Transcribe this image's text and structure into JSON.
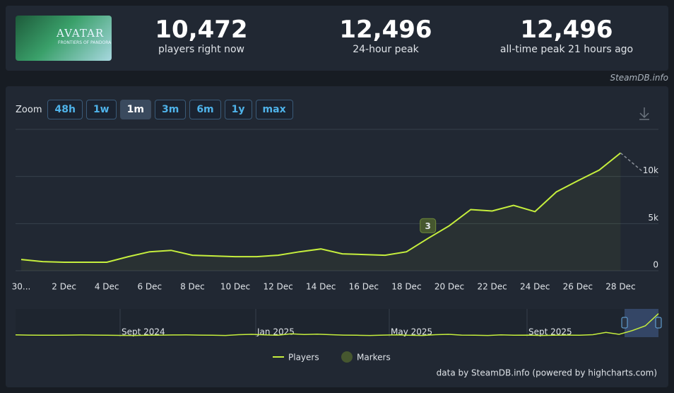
{
  "logo": {
    "title": "AVATAR",
    "subtitle": "FRONTIERS OF PANDORA"
  },
  "stats": [
    {
      "value": "10,472",
      "label": "players right now"
    },
    {
      "value": "12,496",
      "label": "24-hour peak"
    },
    {
      "value": "12,496",
      "label": "all-time peak 21 hours ago"
    }
  ],
  "site": "SteamDB.info",
  "zoom": {
    "label": "Zoom",
    "buttons": [
      "48h",
      "1w",
      "1m",
      "3m",
      "6m",
      "1y",
      "max"
    ],
    "selected": 2
  },
  "chart_data": {
    "type": "line",
    "categories": [
      "30...",
      null,
      "2 Dec",
      null,
      "4 Dec",
      null,
      "6 Dec",
      null,
      "8 Dec",
      null,
      "10 Dec",
      null,
      "12 Dec",
      null,
      "14 Dec",
      null,
      "16 Dec",
      null,
      "18 Dec",
      null,
      "20 Dec",
      null,
      "22 Dec",
      null,
      "24 Dec",
      null,
      "26 Dec",
      null,
      "28 Dec"
    ],
    "series": [
      {
        "name": "Players",
        "color": "#c6ef3d",
        "values": [
          1190,
          970,
          900,
          900,
          900,
          1490,
          2010,
          2160,
          1640,
          1570,
          1490,
          1490,
          1640,
          2010,
          2310,
          1790,
          1720,
          1640,
          2010,
          3430,
          4780,
          6490,
          6340,
          6940,
          6270,
          8360,
          9550,
          10670,
          12496
        ],
        "current": 10472
      }
    ],
    "markers": {
      "name": "Markers",
      "color": "#46572f",
      "items": [
        {
          "label": "3",
          "category": 19
        }
      ]
    },
    "ylim": [
      0,
      15000
    ],
    "yticks": [
      {
        "value": 0,
        "label": "0"
      },
      {
        "value": 5000,
        "label": "5k"
      },
      {
        "value": 10000,
        "label": "10k"
      }
    ],
    "grid": true,
    "navigator": {
      "labels": [
        "Sept 2024",
        "Jan 2025",
        "May 2025",
        "Sept 2025"
      ],
      "values": [
        1200,
        1100,
        1000,
        1050,
        1100,
        1150,
        1100,
        1000,
        950,
        900,
        1000,
        1100,
        1150,
        1200,
        1100,
        1000,
        900,
        1300,
        1500,
        1200,
        1000,
        1800,
        1400,
        1600,
        1300,
        1100,
        1000,
        900,
        1100,
        1200,
        1000,
        900,
        1300,
        1500,
        1100,
        1000,
        900,
        1200,
        1000,
        1100,
        900,
        1000,
        1100,
        1000,
        1300,
        2500,
        1500,
        3500,
        6000,
        12496
      ]
    },
    "credit": "data by SteamDB.info (powered by highcharts.com)"
  }
}
